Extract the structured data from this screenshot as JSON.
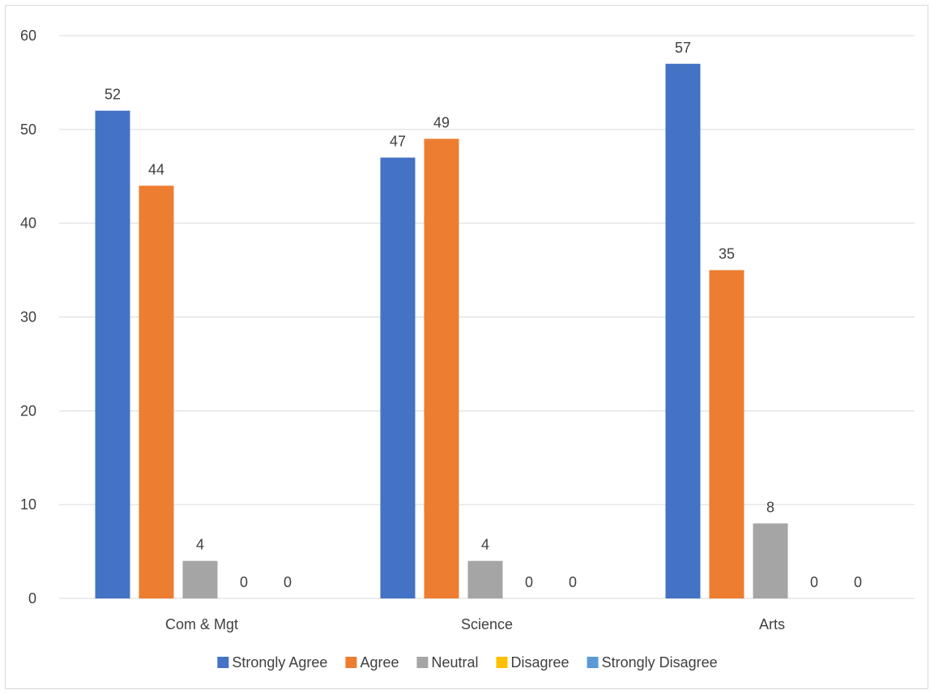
{
  "chart_data": {
    "type": "bar",
    "title": "",
    "xlabel": "",
    "ylabel": "",
    "categories": [
      "Com & Mgt",
      "Science",
      "Arts"
    ],
    "series": [
      {
        "name": "Strongly Agree",
        "color": "#4472c4",
        "values": [
          52,
          47,
          57
        ]
      },
      {
        "name": "Agree",
        "color": "#ed7d31",
        "values": [
          44,
          49,
          35
        ]
      },
      {
        "name": "Neutral",
        "color": "#a5a5a5",
        "values": [
          4,
          4,
          8
        ]
      },
      {
        "name": "Disagree",
        "color": "#ffc000",
        "values": [
          0,
          0,
          0
        ]
      },
      {
        "name": "Strongly Disagree",
        "color": "#5b9bd5",
        "values": [
          0,
          0,
          0
        ]
      }
    ],
    "ylim": [
      0,
      60
    ],
    "yticks": [
      0,
      10,
      20,
      30,
      40,
      50,
      60
    ],
    "grid": true,
    "data_labels": true,
    "legend_position": "bottom"
  }
}
